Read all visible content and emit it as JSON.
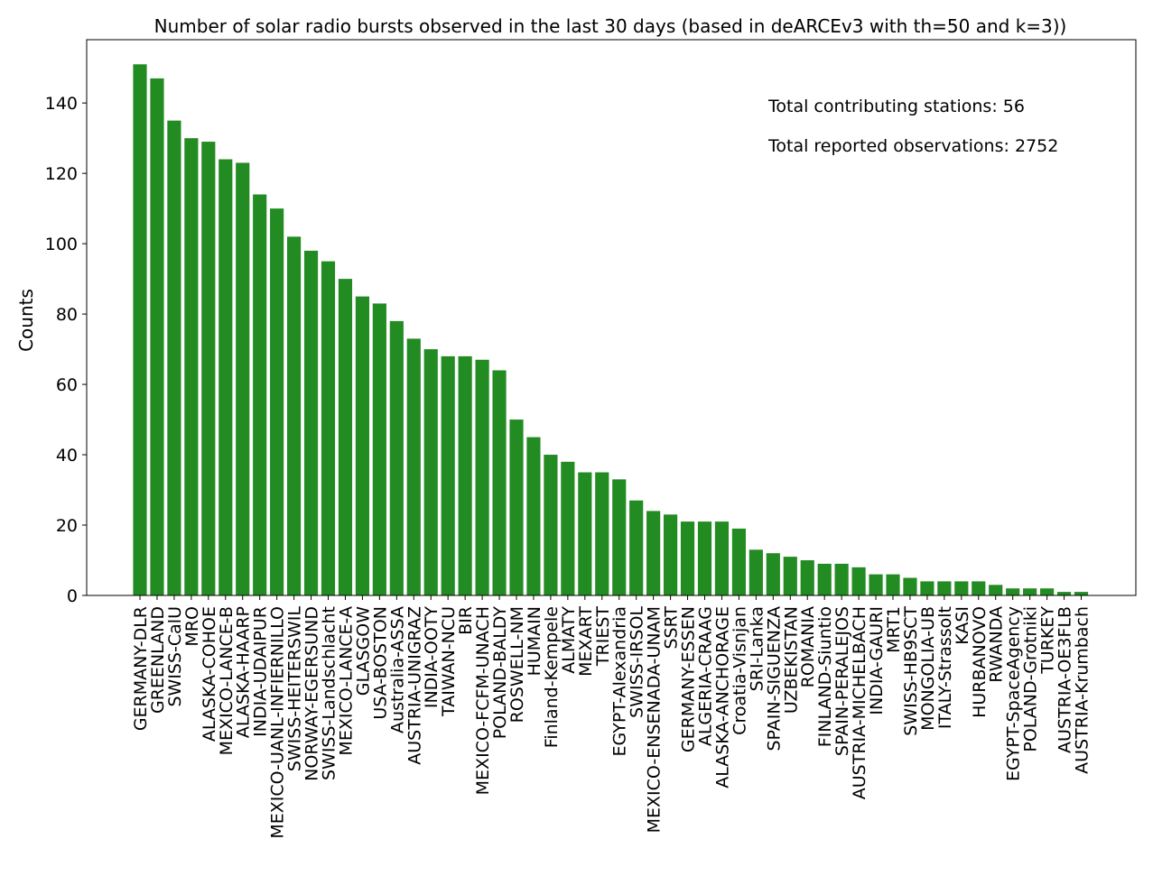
{
  "chart_data": {
    "type": "bar",
    "title": "Number of solar radio bursts observed in the last 30 days (based in deARCEv3 with th=50 and k=3))",
    "xlabel": "",
    "ylabel": "Counts",
    "ylim": [
      0,
      158
    ],
    "yticks": [
      0,
      20,
      40,
      60,
      80,
      100,
      120,
      140
    ],
    "bar_color": "#228b22",
    "grid": false,
    "categories": [
      "GERMANY-DLR",
      "GREENLAND",
      "SWISS-CalU",
      "MRO",
      "ALASKA-COHOE",
      "MEXICO-LANCE-B",
      "ALASKA-HAARP",
      "INDIA-UDAIPUR",
      "MEXICO-UANL-INFIERNILLO",
      "SWISS-HEITERSWIL",
      "NORWAY-EGERSUND",
      "SWISS-Landschlacht",
      "MEXICO-LANCE-A",
      "GLASGOW",
      "USA-BOSTON",
      "Australia-ASSA",
      "AUSTRIA-UNIGRAZ",
      "INDIA-OOTY",
      "TAIWAN-NCU",
      "BIR",
      "MEXICO-FCFM-UNACH",
      "POLAND-BALDY",
      "ROSWELL-NM",
      "HUMAIN",
      "Finland-Kempele",
      "ALMATY",
      "MEXART",
      "TRIEST",
      "EGYPT-Alexandria",
      "SWISS-IRSOL",
      "MEXICO-ENSENADA-UNAM",
      "SSRT",
      "GERMANY-ESSEN",
      "ALGERIA-CRAAG",
      "ALASKA-ANCHORAGE",
      "Croatia-Visnjan",
      "SRI-Lanka",
      "SPAIN-SIGUENZA",
      "UZBEKISTAN",
      "ROMANIA",
      "FINLAND-Siuntio",
      "SPAIN-PERALEJOS",
      "AUSTRIA-MICHELBACH",
      "INDIA-GAURI",
      "MRT1",
      "SWISS-HB9SCT",
      "MONGOLIA-UB",
      "ITALY-Strassolt",
      "KASI",
      "HURBANOVO",
      "RWANDA",
      "EGYPT-SpaceAgency",
      "POLAND-Grotniki",
      "TURKEY",
      "AUSTRIA-OE3FLB",
      "AUSTRIA-Krumbach"
    ],
    "values": [
      151,
      147,
      135,
      130,
      129,
      124,
      123,
      114,
      110,
      102,
      98,
      95,
      90,
      85,
      83,
      78,
      73,
      70,
      68,
      68,
      67,
      64,
      50,
      45,
      40,
      38,
      35,
      35,
      33,
      27,
      24,
      23,
      21,
      21,
      21,
      19,
      13,
      12,
      11,
      10,
      9,
      9,
      8,
      6,
      6,
      5,
      4,
      4,
      4,
      4,
      3,
      2,
      2,
      2,
      1,
      1
    ],
    "annotations": [
      "Total contributing stations: 56",
      "Total reported observations: 2752"
    ]
  }
}
